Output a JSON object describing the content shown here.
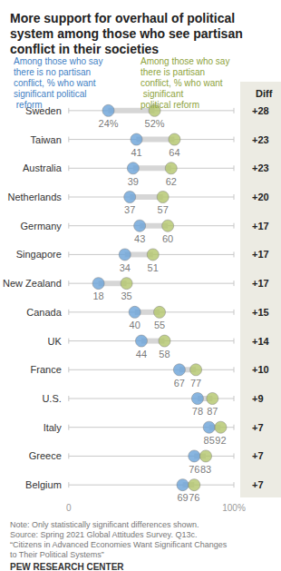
{
  "chart_data": {
    "type": "dot_plot",
    "title": "More support for overhaul of political system among those who see partisan conflict in their societies",
    "categories": [
      "Sweden",
      "Taiwan",
      "Australia",
      "Netherlands",
      "Germany",
      "Singapore",
      "New Zealand",
      "Canada",
      "UK",
      "France",
      "U.S.",
      "Italy",
      "Greece",
      "Belgium"
    ],
    "series": [
      {
        "name": "Among those who say there is no partisan conflict, % who want significant political reform",
        "color": "#6aa2d8",
        "values": [
          24,
          41,
          39,
          37,
          43,
          34,
          18,
          40,
          44,
          67,
          78,
          85,
          76,
          69
        ],
        "value_labels": [
          "24%",
          "41",
          "39",
          "37",
          "43",
          "34",
          "18",
          "40",
          "44",
          "67",
          "78",
          "85",
          "76",
          "69"
        ]
      },
      {
        "name": "Among those who say there is partisan conflict, % who want significant political reform",
        "color": "#b3c56b",
        "values": [
          52,
          64,
          62,
          57,
          60,
          51,
          35,
          55,
          58,
          77,
          87,
          92,
          83,
          76
        ],
        "value_labels": [
          "52%",
          "64",
          "62",
          "57",
          "60",
          "51",
          "35",
          "55",
          "58",
          "77",
          "87",
          "92",
          "83",
          "76"
        ]
      }
    ],
    "diff": {
      "title": "Diff",
      "labels": [
        "+28",
        "+23",
        "+23",
        "+20",
        "+17",
        "+17",
        "+17",
        "+15",
        "+14",
        "+10",
        "+9",
        "+7",
        "+7",
        "+7"
      ]
    },
    "xlim": [
      0,
      100
    ],
    "xticks": [
      0,
      {
        "value": 100,
        "label": "100%"
      }
    ],
    "data_labels": true,
    "notes": [
      "Note: Only statistically significant differences shown.",
      "Source: Spring 2021 Global Attitudes Survey. Q13c.",
      "“Citizens in Advanced Economies Want Significant Changes to Their Political Systems”"
    ],
    "source": "PEW RESEARCH CENTER"
  }
}
